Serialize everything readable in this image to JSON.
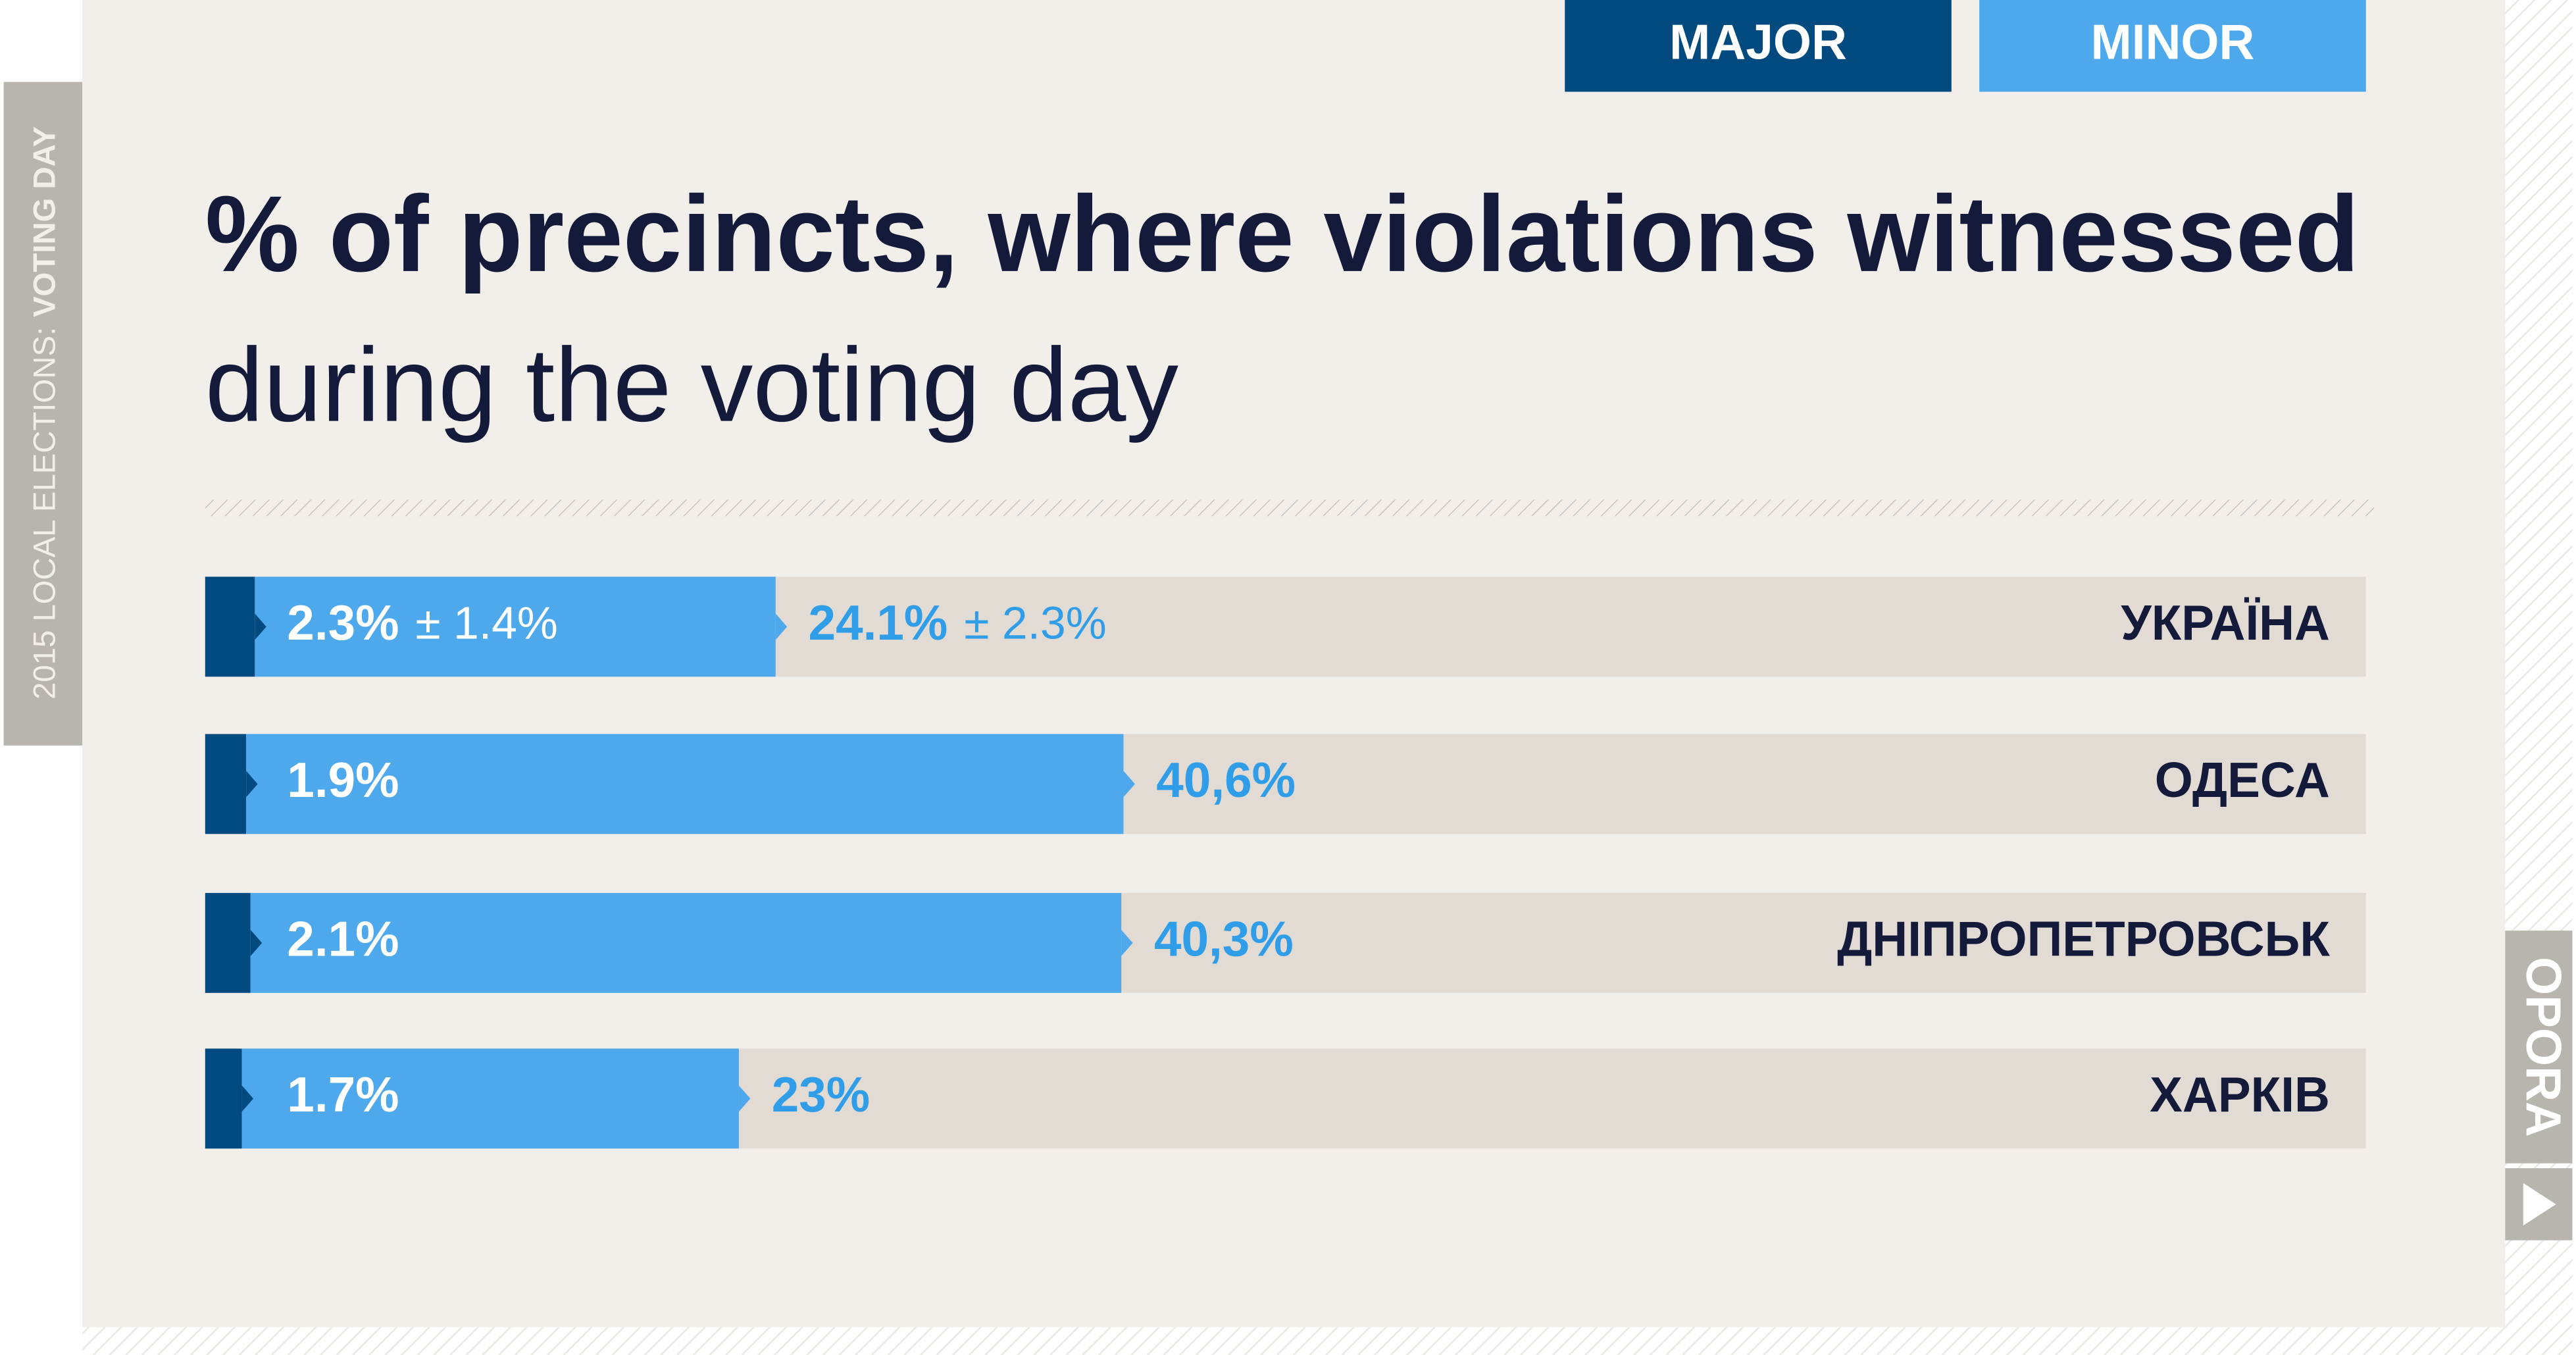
{
  "chart_data": {
    "type": "stacked-barh",
    "title": "% of precincts, where violations witnessed",
    "subtitle": "during the voting day",
    "categories": [
      "УКРАЇНА",
      "ОДЕСА",
      "ДНІПРОПЕТРОВСЬК",
      "ХАРКІВ"
    ],
    "series": [
      {
        "name": "MAJOR",
        "color": "#004a80",
        "label_color": "#ffffff",
        "values": [
          2.3,
          1.9,
          2.1,
          1.7
        ],
        "value_labels": [
          "2.3%",
          "1.9%",
          "2.1%",
          "1.7%"
        ],
        "errors": [
          1.4,
          null,
          null,
          null
        ],
        "error_labels": [
          "± 1.4%",
          null,
          null,
          null
        ]
      },
      {
        "name": "MINOR",
        "color": "#4ea8ec",
        "label_color": "#2f9de8",
        "values": [
          24.1,
          40.6,
          40.3,
          23
        ],
        "value_labels": [
          "24.1%",
          "40,6%",
          "40,3%",
          "23%"
        ],
        "errors": [
          2.3,
          null,
          null,
          null
        ],
        "error_labels": [
          "± 2.3%",
          null,
          null,
          null
        ]
      }
    ],
    "xlim": [
      0,
      100
    ],
    "track_color": "#e2dbd4"
  },
  "sidebar": {
    "text": "2015 LOCAL ELECTIONS:",
    "emphasis": "VOTING DAY"
  },
  "logo": "OPORA"
}
